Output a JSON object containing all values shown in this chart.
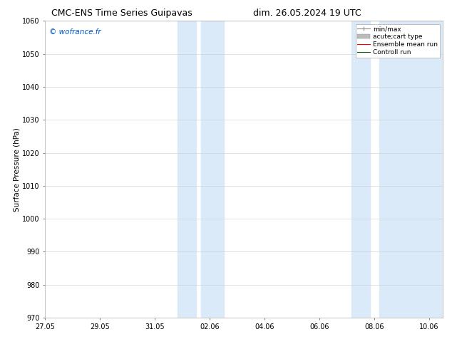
{
  "title": "CMC-ENS Time Series Guipavas",
  "title2": "dim. 26.05.2024 19 UTC",
  "ylabel": "Surface Pressure (hPa)",
  "ylim": [
    970,
    1060
  ],
  "yticks": [
    970,
    980,
    990,
    1000,
    1010,
    1020,
    1030,
    1040,
    1050,
    1060
  ],
  "xtick_labels": [
    "27.05",
    "29.05",
    "31.05",
    "02.06",
    "04.06",
    "06.06",
    "08.06",
    "10.06"
  ],
  "xtick_positions": [
    0,
    2,
    4,
    6,
    8,
    10,
    12,
    14
  ],
  "xlim": [
    0,
    14.5
  ],
  "shaded_regions": [
    {
      "start": 4.83,
      "end": 5.5
    },
    {
      "start": 5.67,
      "end": 6.5
    },
    {
      "start": 11.17,
      "end": 11.83
    },
    {
      "start": 12.17,
      "end": 14.5
    }
  ],
  "shaded_color": "#daeaf8",
  "watermark_text": "© wofrance.fr",
  "watermark_color": "#0055cc",
  "background_color": "#ffffff",
  "grid_color": "#cccccc",
  "title_fontsize": 9,
  "ylabel_fontsize": 7.5,
  "tick_fontsize": 7,
  "watermark_fontsize": 7.5,
  "legend_fontsize": 6.5
}
